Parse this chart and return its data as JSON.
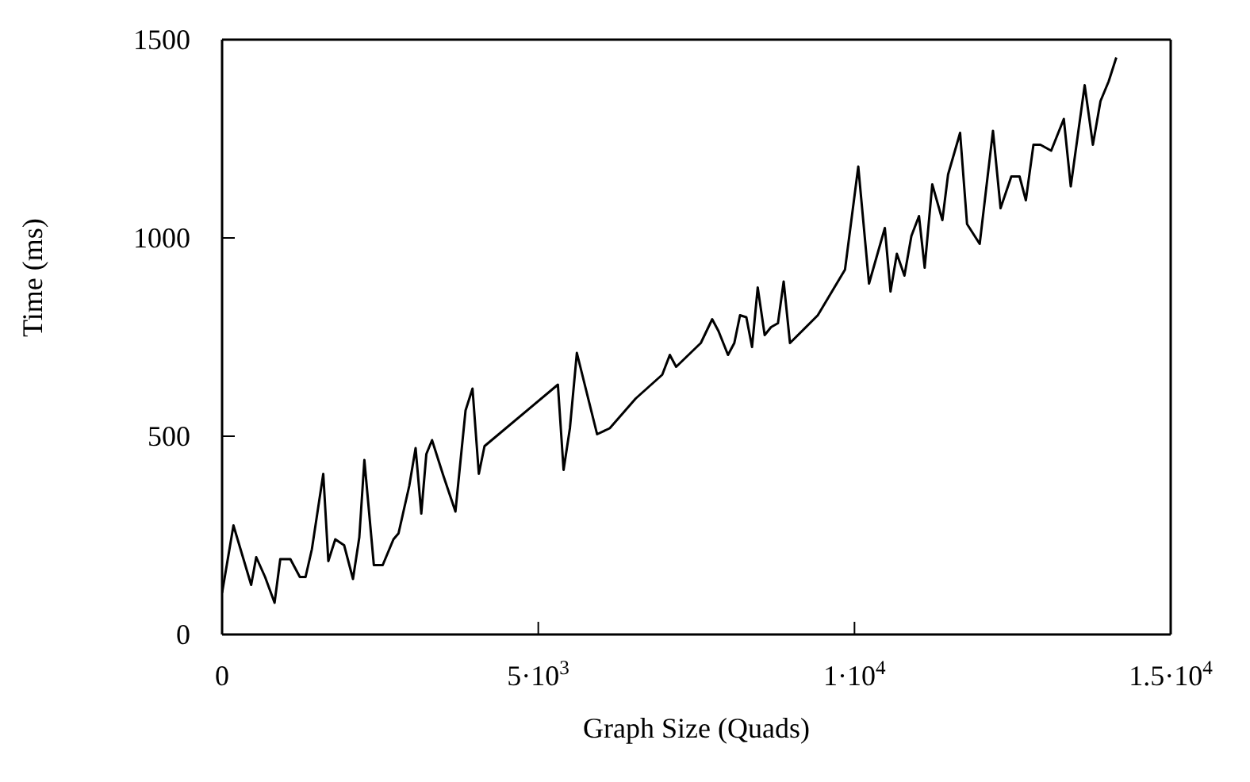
{
  "chart_data": {
    "type": "line",
    "xlabel": "Graph Size (Quads)",
    "ylabel": "Time (ms)",
    "xlim": [
      0,
      15000
    ],
    "xticks": [
      0,
      {
        "value": 5000,
        "label": "5·10$^{3}$"
      },
      {
        "value": 10000,
        "label": "1·10$^{4}$"
      },
      {
        "value": 15000,
        "label": "1.5·10$^{4}$"
      }
    ],
    "ylim": [
      0,
      1500
    ],
    "yticks": [
      0,
      500,
      1000,
      1500
    ],
    "marker": "none",
    "line_style": "solid",
    "series": [
      {
        "color": "#000000",
        "x": [
          0,
          180,
          460,
          540,
          680,
          830,
          920,
          1080,
          1230,
          1320,
          1420,
          1600,
          1680,
          1790,
          1930,
          2070,
          2170,
          2250,
          2400,
          2540,
          2710,
          2790,
          2960,
          3060,
          3150,
          3230,
          3320,
          3500,
          3690,
          3850,
          3960,
          4060,
          4150,
          5310,
          5400,
          5500,
          5610,
          5930,
          6130,
          6540,
          6960,
          7080,
          7180,
          7570,
          7750,
          7850,
          8000,
          8100,
          8190,
          8290,
          8380,
          8470,
          8580,
          8680,
          8790,
          8880,
          8980,
          9420,
          9850,
          10060,
          10230,
          10480,
          10570,
          10670,
          10790,
          10900,
          11020,
          11110,
          11230,
          11390,
          11480,
          11670,
          11780,
          11980,
          12190,
          12310,
          12480,
          12610,
          12710,
          12830,
          12940,
          13110,
          13310,
          13420,
          13640,
          13770,
          13890,
          14020,
          14140
        ],
        "values": [
          105,
          275,
          125,
          195,
          145,
          80,
          190,
          190,
          145,
          145,
          215,
          405,
          185,
          240,
          225,
          140,
          245,
          440,
          175,
          175,
          240,
          255,
          375,
          470,
          305,
          455,
          490,
          400,
          310,
          565,
          620,
          405,
          475,
          630,
          415,
          520,
          710,
          505,
          520,
          595,
          655,
          705,
          675,
          735,
          795,
          765,
          705,
          735,
          805,
          800,
          725,
          875,
          755,
          775,
          785,
          890,
          735,
          805,
          920,
          1180,
          885,
          1025,
          865,
          960,
          905,
          1005,
          1055,
          925,
          1135,
          1045,
          1160,
          1265,
          1035,
          985,
          1270,
          1075,
          1155,
          1155,
          1095,
          1235,
          1235,
          1220,
          1300,
          1130,
          1385,
          1235,
          1345,
          1395,
          1455
        ]
      }
    ]
  }
}
